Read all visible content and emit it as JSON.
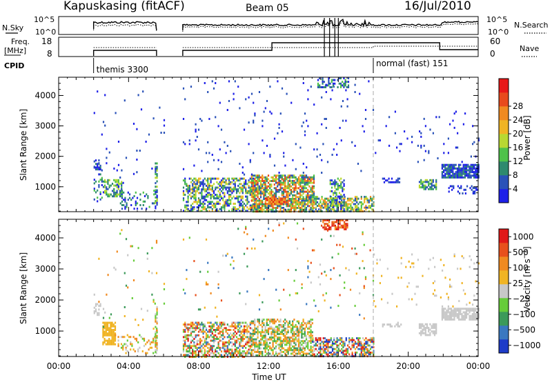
{
  "header": {
    "title": "Kapuskasing (fitACF)",
    "beam": "Beam 05",
    "date": "16/Jul/2010"
  },
  "top_panels": {
    "nsky_label": "N.Sky",
    "nsearch_label": "N.Search",
    "noise_ticks": [
      "10^5",
      "10^0"
    ],
    "freq_label_1": "Freq.",
    "freq_label_2": "[MHz]",
    "freq_ticks": [
      "18",
      "8"
    ],
    "nave_label": "Nave",
    "nave_ticks": [
      "60",
      "0"
    ],
    "cpid_label": "CPID",
    "cpid_modes": [
      {
        "label": "themis 3300",
        "start_hour": 2.0
      },
      {
        "label": "normal (fast) 151",
        "start_hour": 18.0
      }
    ]
  },
  "x_axis": {
    "label": "Time UT",
    "tick_labels": [
      "00:00",
      "04:00",
      "08:00",
      "12:00",
      "16:00",
      "20:00",
      "00:00"
    ],
    "range_hours": [
      0,
      24
    ]
  },
  "chart_data": [
    {
      "type": "heatmap",
      "name": "power",
      "ylabel": "Slant Range [km]",
      "y_ticks": [
        "1000",
        "2000",
        "3000",
        "4000"
      ],
      "ylim": [
        180,
        4600
      ],
      "colorbar_label": "Power [dB]",
      "colorbar_ticks": [
        "4",
        "8",
        "12",
        "16",
        "20",
        "24",
        "28"
      ],
      "colorbar_colors": [
        "#1e20e8",
        "#2a52b8",
        "#2e8a6e",
        "#4ec24a",
        "#b8d832",
        "#f0b424",
        "#f08a20",
        "#e84a1c",
        "#e81818"
      ],
      "scatter_regions": [
        {
          "t": [
            2.0,
            2.35
          ],
          "r": [
            1600,
            1900
          ],
          "density": 0.55,
          "level": [
            0,
            2
          ]
        },
        {
          "t": [
            2.0,
            2.6
          ],
          "r": [
            500,
            1500
          ],
          "density": 0.25,
          "level": [
            0,
            3
          ]
        },
        {
          "t": [
            2.6,
            3.6
          ],
          "r": [
            700,
            1250
          ],
          "density": 0.6,
          "level": [
            1,
            4
          ]
        },
        {
          "t": [
            3.5,
            5.6
          ],
          "r": [
            300,
            900
          ],
          "density": 0.2,
          "level": [
            0,
            3
          ]
        },
        {
          "t": [
            5.5,
            5.65
          ],
          "r": [
            300,
            1800
          ],
          "density": 0.7,
          "level": [
            0,
            4
          ]
        },
        {
          "t": [
            2.0,
            6.0
          ],
          "r": [
            1000,
            4400
          ],
          "density": 0.015,
          "level": [
            0,
            1
          ]
        },
        {
          "t": [
            7.1,
            11.2
          ],
          "r": [
            200,
            1300
          ],
          "density": 0.55,
          "level": [
            0,
            5
          ]
        },
        {
          "t": [
            11.0,
            14.6
          ],
          "r": [
            200,
            1400
          ],
          "density": 0.7,
          "level": [
            1,
            7
          ]
        },
        {
          "t": [
            11.8,
            13.0
          ],
          "r": [
            420,
            650
          ],
          "density": 0.9,
          "level": [
            5,
            8
          ]
        },
        {
          "t": [
            14.5,
            18.0
          ],
          "r": [
            200,
            700
          ],
          "density": 0.6,
          "level": [
            1,
            6
          ]
        },
        {
          "t": [
            15.5,
            16.3
          ],
          "r": [
            200,
            1300
          ],
          "density": 0.5,
          "level": [
            0,
            4
          ]
        },
        {
          "t": [
            7.1,
            18.0
          ],
          "r": [
            1400,
            4500
          ],
          "density": 0.02,
          "level": [
            0,
            1
          ]
        },
        {
          "t": [
            14.8,
            16.6
          ],
          "r": [
            4300,
            4600
          ],
          "density": 0.5,
          "level": [
            0,
            3
          ]
        },
        {
          "t": [
            18.5,
            19.6
          ],
          "r": [
            1150,
            1300
          ],
          "density": 0.5,
          "level": [
            0,
            1
          ]
        },
        {
          "t": [
            20.6,
            21.6
          ],
          "r": [
            900,
            1250
          ],
          "density": 0.7,
          "level": [
            1,
            4
          ]
        },
        {
          "t": [
            21.9,
            24.0
          ],
          "r": [
            1300,
            1750
          ],
          "density": 0.85,
          "level": [
            0,
            2
          ]
        },
        {
          "t": [
            22.2,
            24.0
          ],
          "r": [
            800,
            1050
          ],
          "density": 0.35,
          "level": [
            0,
            1
          ]
        },
        {
          "t": [
            18.0,
            24.0
          ],
          "r": [
            1800,
            3500
          ],
          "density": 0.03,
          "level": [
            0,
            1
          ]
        }
      ]
    },
    {
      "type": "heatmap",
      "name": "velocity",
      "ylabel": "Slant Range [km]",
      "y_ticks": [
        "1000",
        "2000",
        "3000",
        "4000"
      ],
      "ylim": [
        180,
        4600
      ],
      "colorbar_label": "Velocity [m s^-1]",
      "colorbar_ticks": [
        "1000",
        "500",
        "100",
        "25",
        "−25",
        "−100",
        "−500",
        "−1000"
      ],
      "colorbar_colors": [
        "#1e3cc8",
        "#3a78c0",
        "#3c9a5a",
        "#66cc3a",
        "#c8c8c8",
        "#f0b424",
        "#f08a20",
        "#e8501c",
        "#e01818"
      ],
      "scatter_regions": [
        {
          "t": [
            2.0,
            2.4
          ],
          "r": [
            1550,
            1900
          ],
          "density": 0.4,
          "level": [
            4,
            4
          ]
        },
        {
          "t": [
            2.5,
            3.2
          ],
          "r": [
            600,
            1300
          ],
          "density": 0.8,
          "level": [
            5,
            5
          ]
        },
        {
          "t": [
            3.2,
            5.6
          ],
          "r": [
            300,
            900
          ],
          "density": 0.25,
          "level": [
            3,
            6
          ]
        },
        {
          "t": [
            5.5,
            5.65
          ],
          "r": [
            300,
            1800
          ],
          "density": 0.6,
          "level": [
            3,
            6
          ]
        },
        {
          "t": [
            2.0,
            6.0
          ],
          "r": [
            1000,
            4400
          ],
          "density": 0.015,
          "level": [
            2,
            6
          ]
        },
        {
          "t": [
            7.1,
            11.0
          ],
          "r": [
            200,
            1300
          ],
          "density": 0.55,
          "level": [
            1,
            8
          ]
        },
        {
          "t": [
            11.0,
            14.5
          ],
          "r": [
            200,
            1400
          ],
          "density": 0.6,
          "level": [
            2,
            6
          ]
        },
        {
          "t": [
            14.5,
            18.0
          ],
          "r": [
            200,
            800
          ],
          "density": 0.6,
          "level": [
            0,
            8
          ]
        },
        {
          "t": [
            7.1,
            18.0
          ],
          "r": [
            1400,
            4500
          ],
          "density": 0.02,
          "level": [
            1,
            7
          ]
        },
        {
          "t": [
            15.0,
            16.5
          ],
          "r": [
            4300,
            4600
          ],
          "density": 0.6,
          "level": [
            6,
            8
          ]
        },
        {
          "t": [
            18.5,
            19.6
          ],
          "r": [
            1150,
            1300
          ],
          "density": 0.4,
          "level": [
            4,
            4
          ]
        },
        {
          "t": [
            20.6,
            21.6
          ],
          "r": [
            900,
            1250
          ],
          "density": 0.7,
          "level": [
            4,
            4
          ]
        },
        {
          "t": [
            21.9,
            24.0
          ],
          "r": [
            1350,
            1750
          ],
          "density": 0.8,
          "level": [
            4,
            4
          ]
        },
        {
          "t": [
            18.0,
            24.0
          ],
          "r": [
            1800,
            3500
          ],
          "density": 0.03,
          "level": [
            4,
            5
          ]
        }
      ]
    }
  ]
}
